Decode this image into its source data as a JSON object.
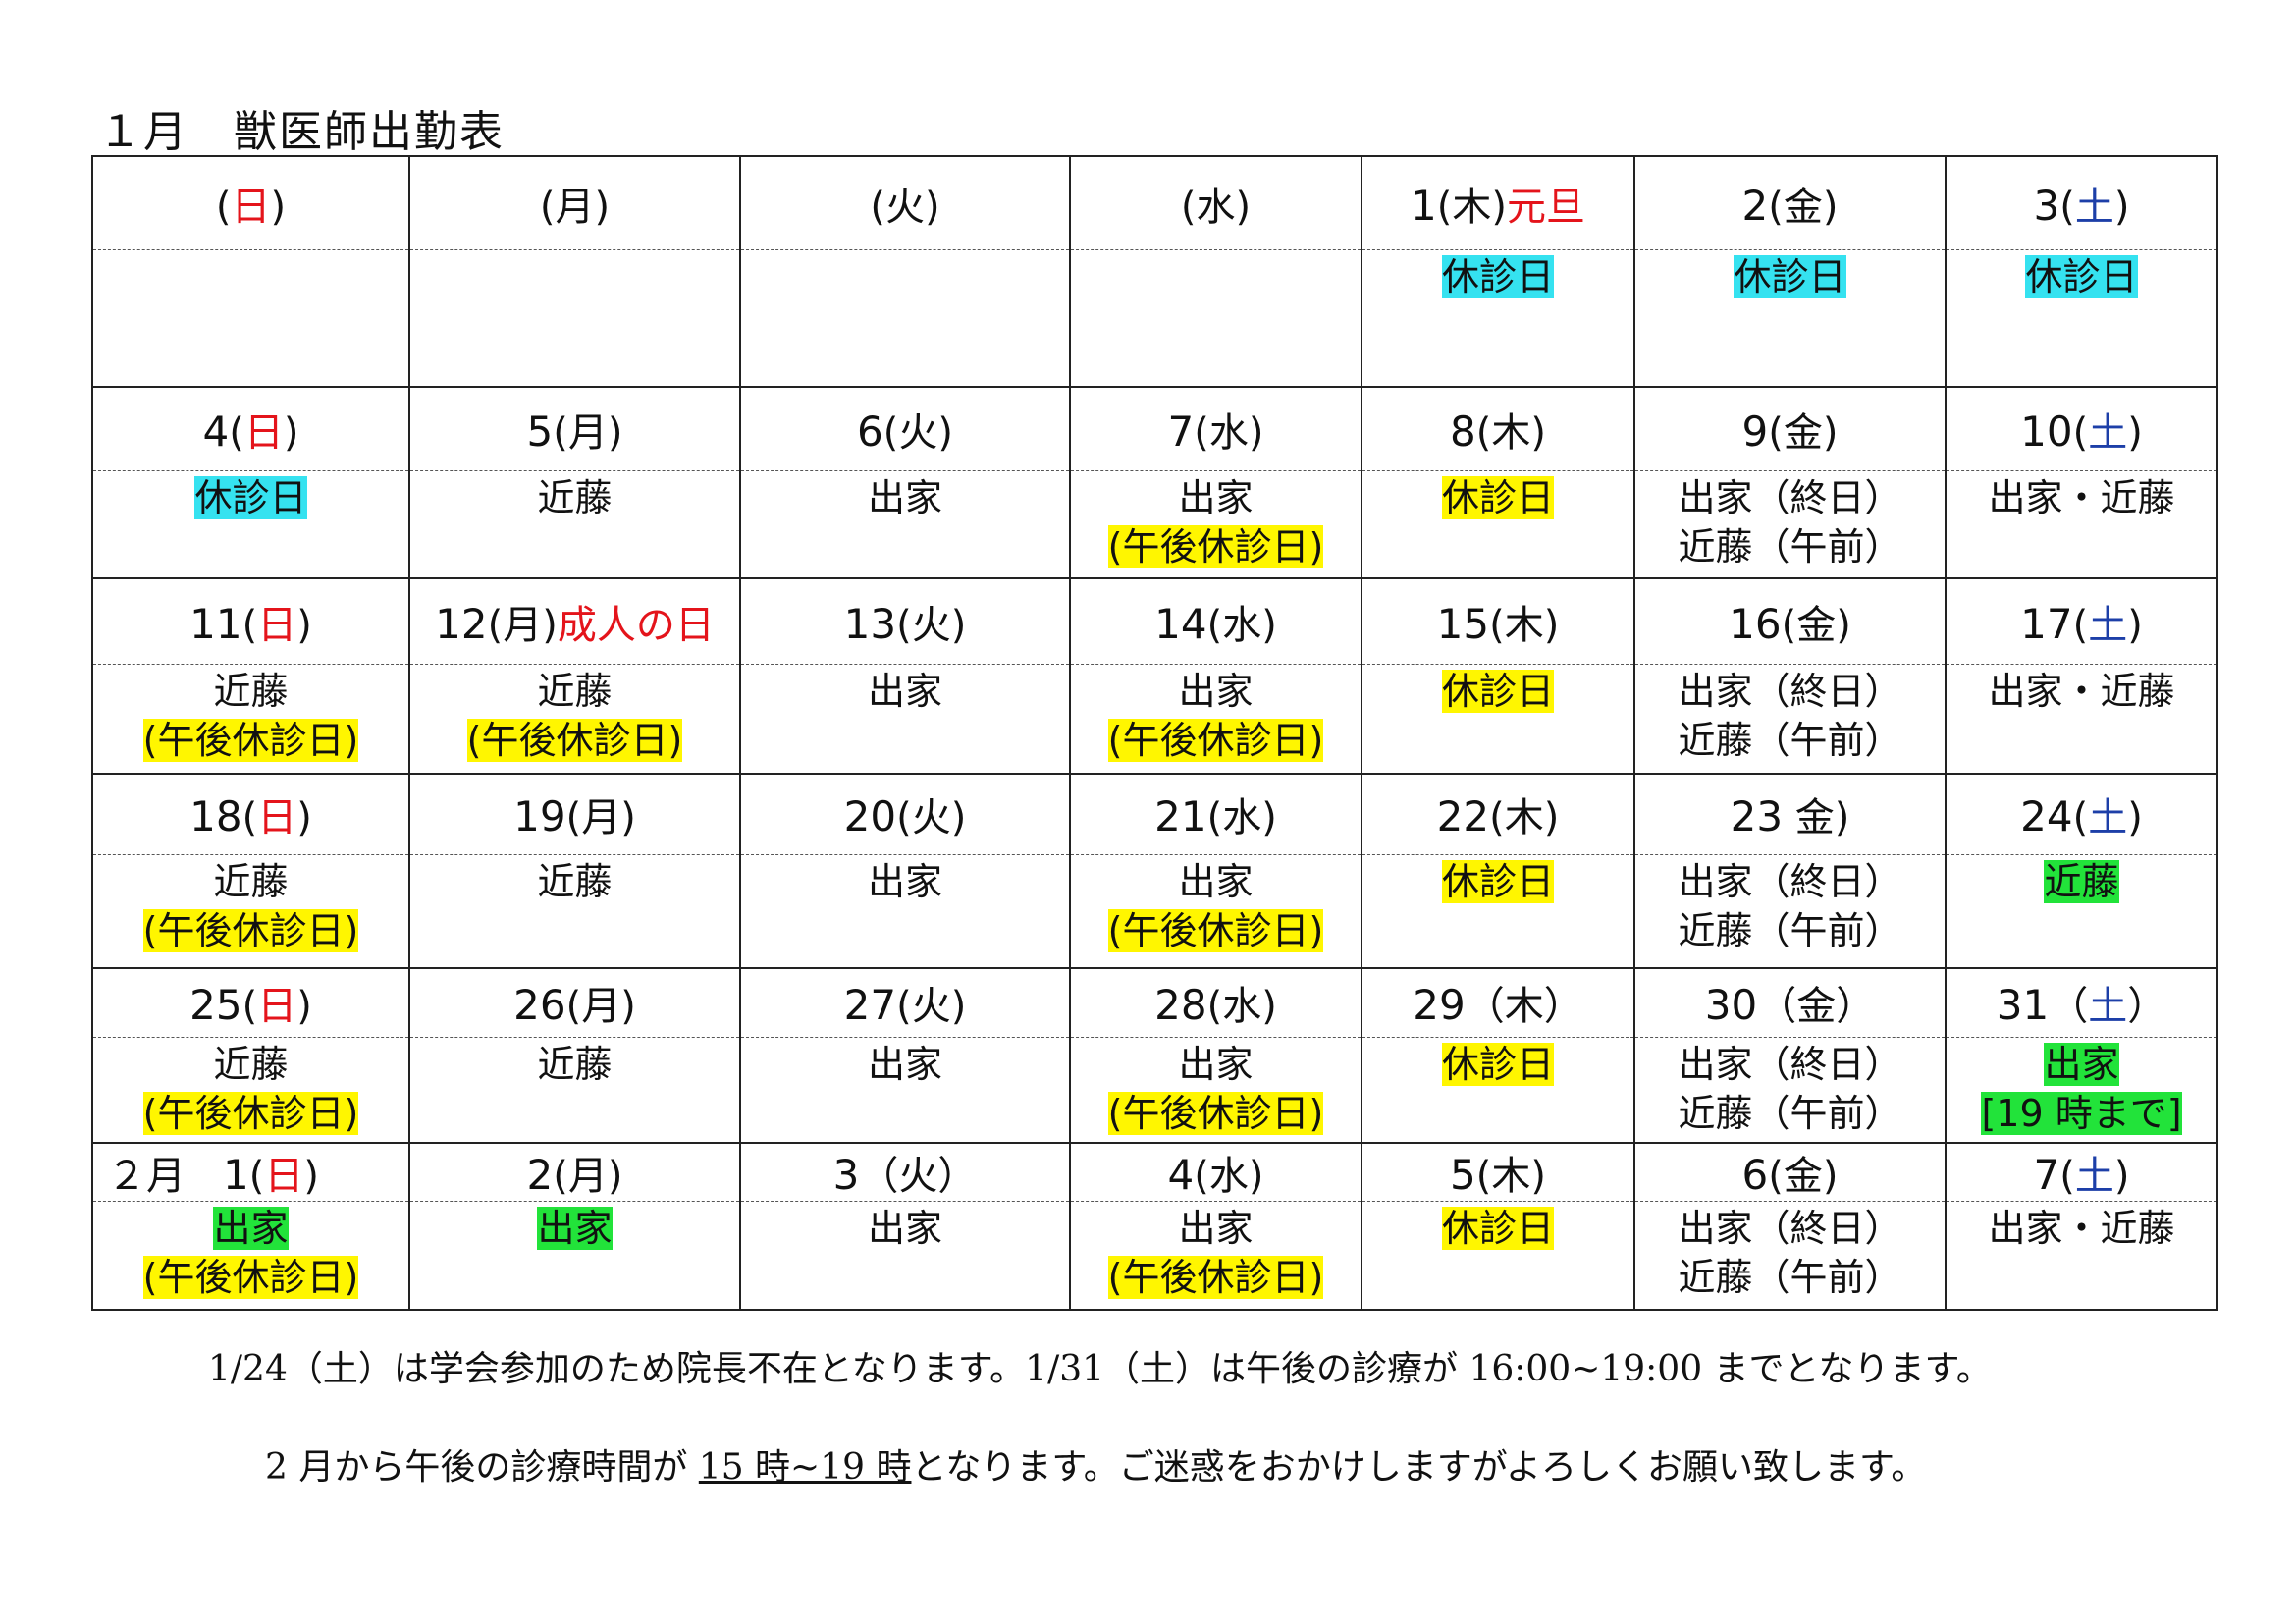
{
  "title": "１月　獣医師出勤表",
  "colors": {
    "yellow": "#fff600",
    "cyan": "#35e2f0",
    "green": "#22e33a",
    "red": "#e4141b",
    "blue": "#1d3fa8"
  },
  "weeks": [
    {
      "days": [
        {
          "num": "",
          "open": "(",
          "dow": "日",
          "close": ")",
          "holiday": "",
          "lines": []
        },
        {
          "num": "",
          "open": "(",
          "dow": "月",
          "close": ")",
          "holiday": "",
          "lines": []
        },
        {
          "num": "",
          "open": "(",
          "dow": "火",
          "close": ")",
          "holiday": "",
          "lines": []
        },
        {
          "num": "",
          "open": "(",
          "dow": "水",
          "close": ")",
          "holiday": "",
          "lines": []
        },
        {
          "num": "1",
          "open": "(",
          "dow": "木",
          "close": ")",
          "holiday": "元旦",
          "lines": [
            {
              "text": "休診日",
              "hl": "c"
            }
          ]
        },
        {
          "num": "2",
          "open": "(",
          "dow": "金",
          "close": ")",
          "holiday": "",
          "lines": [
            {
              "text": "休診日",
              "hl": "c"
            }
          ]
        },
        {
          "num": "3",
          "open": "(",
          "dow": "土",
          "close": ")",
          "holiday": "",
          "lines": [
            {
              "text": "休診日",
              "hl": "c"
            }
          ]
        }
      ]
    },
    {
      "days": [
        {
          "num": "4",
          "open": "(",
          "dow": "日",
          "close": ")",
          "holiday": "",
          "lines": [
            {
              "text": "休診日",
              "hl": "c"
            }
          ]
        },
        {
          "num": "5",
          "open": "(",
          "dow": "月",
          "close": ")",
          "holiday": "",
          "lines": [
            {
              "text": "近藤",
              "hl": ""
            }
          ]
        },
        {
          "num": "6",
          "open": "(",
          "dow": "火",
          "close": ")",
          "holiday": "",
          "lines": [
            {
              "text": "出家",
              "hl": ""
            }
          ]
        },
        {
          "num": "7",
          "open": "(",
          "dow": "水",
          "close": ")",
          "holiday": "",
          "lines": [
            {
              "text": "出家",
              "hl": ""
            },
            {
              "text": "(午後休診日)",
              "hl": "y"
            }
          ]
        },
        {
          "num": "8",
          "open": "(",
          "dow": "木",
          "close": ")",
          "holiday": "",
          "lines": [
            {
              "text": "休診日",
              "hl": "y"
            }
          ]
        },
        {
          "num": "9",
          "open": "(",
          "dow": "金",
          "close": ")",
          "holiday": "",
          "lines": [
            {
              "text": "出家（終日）",
              "hl": ""
            },
            {
              "text": "近藤（午前）",
              "hl": ""
            }
          ]
        },
        {
          "num": "10",
          "open": "(",
          "dow": "土",
          "close": ")",
          "holiday": "",
          "lines": [
            {
              "text": "出家・近藤",
              "hl": ""
            }
          ]
        }
      ]
    },
    {
      "days": [
        {
          "num": "11",
          "open": "(",
          "dow": "日",
          "close": ")",
          "holiday": "",
          "lines": [
            {
              "text": "近藤",
              "hl": ""
            },
            {
              "text": "(午後休診日)",
              "hl": "y"
            }
          ]
        },
        {
          "num": "12",
          "open": "(",
          "dow": "月",
          "close": ")",
          "holiday": "成人の日",
          "lines": [
            {
              "text": "近藤",
              "hl": ""
            },
            {
              "text": "(午後休診日)",
              "hl": "y"
            }
          ]
        },
        {
          "num": "13",
          "open": "(",
          "dow": "火",
          "close": ")",
          "holiday": "",
          "lines": [
            {
              "text": "出家",
              "hl": ""
            }
          ]
        },
        {
          "num": "14",
          "open": "(",
          "dow": "水",
          "close": ")",
          "holiday": "",
          "lines": [
            {
              "text": "出家",
              "hl": ""
            },
            {
              "text": "(午後休診日)",
              "hl": "y"
            }
          ]
        },
        {
          "num": "15",
          "open": "(",
          "dow": "木",
          "close": ")",
          "holiday": "",
          "lines": [
            {
              "text": "休診日",
              "hl": "y"
            }
          ]
        },
        {
          "num": "16",
          "open": "(",
          "dow": "金",
          "close": ")",
          "holiday": "",
          "lines": [
            {
              "text": "出家（終日）",
              "hl": ""
            },
            {
              "text": "近藤（午前）",
              "hl": ""
            }
          ]
        },
        {
          "num": "17",
          "open": "(",
          "dow": "土",
          "close": ")",
          "holiday": "",
          "lines": [
            {
              "text": "出家・近藤",
              "hl": ""
            }
          ]
        }
      ]
    },
    {
      "days": [
        {
          "num": "18",
          "open": "(",
          "dow": "日",
          "close": ")",
          "holiday": "",
          "lines": [
            {
              "text": "近藤",
              "hl": ""
            },
            {
              "text": "(午後休診日)",
              "hl": "y"
            }
          ]
        },
        {
          "num": "19",
          "open": "(",
          "dow": "月",
          "close": ")",
          "holiday": "",
          "lines": [
            {
              "text": "近藤",
              "hl": ""
            }
          ]
        },
        {
          "num": "20",
          "open": "(",
          "dow": "火",
          "close": ")",
          "holiday": "",
          "lines": [
            {
              "text": "出家",
              "hl": ""
            }
          ]
        },
        {
          "num": "21",
          "open": "(",
          "dow": "水",
          "close": ")",
          "holiday": "",
          "lines": [
            {
              "text": "出家",
              "hl": ""
            },
            {
              "text": "(午後休診日)",
              "hl": "y"
            }
          ]
        },
        {
          "num": "22",
          "open": "(",
          "dow": "木",
          "close": ")",
          "holiday": "",
          "lines": [
            {
              "text": "休診日",
              "hl": "y"
            }
          ]
        },
        {
          "num": "23",
          "open": " ",
          "dow": "金",
          "close": ")",
          "holiday": "",
          "lines": [
            {
              "text": "出家（終日）",
              "hl": ""
            },
            {
              "text": "近藤（午前）",
              "hl": ""
            }
          ]
        },
        {
          "num": "24",
          "open": "(",
          "dow": "土",
          "close": ")",
          "holiday": "",
          "lines": [
            {
              "text": "近藤",
              "hl": "g"
            }
          ]
        }
      ]
    },
    {
      "days": [
        {
          "num": "25",
          "open": "(",
          "dow": "日",
          "close": ")",
          "holiday": "",
          "lines": [
            {
              "text": "近藤",
              "hl": ""
            },
            {
              "text": "(午後休診日)",
              "hl": "y"
            }
          ]
        },
        {
          "num": "26",
          "open": "(",
          "dow": "月",
          "close": ")",
          "holiday": "",
          "lines": [
            {
              "text": "近藤",
              "hl": ""
            }
          ]
        },
        {
          "num": "27",
          "open": "(",
          "dow": "火",
          "close": ")",
          "holiday": "",
          "lines": [
            {
              "text": "出家",
              "hl": ""
            }
          ]
        },
        {
          "num": "28",
          "open": "(",
          "dow": "水",
          "close": ")",
          "holiday": "",
          "lines": [
            {
              "text": "出家",
              "hl": ""
            },
            {
              "text": "(午後休診日)",
              "hl": "y"
            }
          ]
        },
        {
          "num": "29",
          "open": "（",
          "dow": "木",
          "close": "）",
          "holiday": "",
          "lines": [
            {
              "text": "休診日",
              "hl": "y"
            }
          ]
        },
        {
          "num": "30",
          "open": "（",
          "dow": "金",
          "close": "）",
          "holiday": "",
          "lines": [
            {
              "text": "出家（終日）",
              "hl": ""
            },
            {
              "text": "近藤（午前）",
              "hl": ""
            }
          ]
        },
        {
          "num": "31",
          "open": "（",
          "dow": "土",
          "close": "）",
          "holiday": "",
          "lines": [
            {
              "text": "出家",
              "hl": "g"
            },
            {
              "text": "[19 時まで]",
              "hl": "g"
            }
          ]
        }
      ]
    },
    {
      "days": [
        {
          "prefix": "２月",
          "num": "1",
          "open": "(",
          "dow": "日",
          "close": ")",
          "holiday": "",
          "lines": [
            {
              "text": "出家",
              "hl": "g"
            },
            {
              "text": "(午後休診日)",
              "hl": "y"
            }
          ]
        },
        {
          "num": "2",
          "open": "(",
          "dow": "月",
          "close": ")",
          "holiday": "",
          "lines": [
            {
              "text": "出家",
              "hl": "g"
            }
          ]
        },
        {
          "num": "3",
          "open": "（",
          "dow": "火",
          "close": "）",
          "holiday": "",
          "lines": [
            {
              "text": "出家",
              "hl": ""
            }
          ]
        },
        {
          "num": "4",
          "open": "(",
          "dow": "水",
          "close": ")",
          "holiday": "",
          "lines": [
            {
              "text": "出家",
              "hl": ""
            },
            {
              "text": "(午後休診日)",
              "hl": "y"
            }
          ]
        },
        {
          "num": "5",
          "open": "(",
          "dow": "木",
          "close": ")",
          "holiday": "",
          "lines": [
            {
              "text": "休診日",
              "hl": "y"
            }
          ]
        },
        {
          "num": "6",
          "open": "(",
          "dow": "金",
          "close": ")",
          "holiday": "",
          "lines": [
            {
              "text": "出家（終日）",
              "hl": ""
            },
            {
              "text": "近藤（午前）",
              "hl": ""
            }
          ]
        },
        {
          "num": "7",
          "open": "(",
          "dow": "土",
          "close": ")",
          "holiday": "",
          "lines": [
            {
              "text": "出家・近藤",
              "hl": ""
            }
          ]
        }
      ]
    }
  ],
  "notes": {
    "line1": "1/24（土）は学会参加のため院長不在となります。1/31（土）は午後の診療が 16:00~19:00 までとなります。",
    "line2_before": "2 月から午後の診療時間が ",
    "line2_underlined": "15 時~19 時",
    "line2_after": "となります。ご迷惑をおかけしますがよろしくお願い致します。"
  }
}
